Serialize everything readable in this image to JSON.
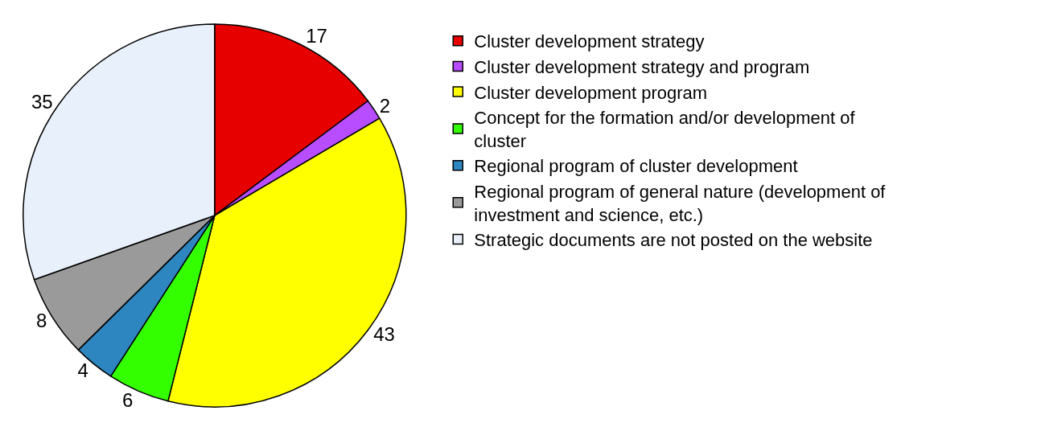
{
  "chart_data": {
    "type": "pie",
    "categories": [
      "Cluster development strategy",
      "Cluster development strategy and program",
      "Cluster development program",
      "Concept for the formation and/or development of cluster",
      "Regional program of cluster development",
      "Regional program of general nature (development of investment and science, etc.)",
      "Strategic documents are not posted on the website"
    ],
    "values": [
      17,
      2,
      43,
      6,
      4,
      8,
      35
    ],
    "colors": [
      "#e60000",
      "#b84dff",
      "#ffff00",
      "#33ff00",
      "#2e86c1",
      "#9a9a9a",
      "#e8f0fc"
    ],
    "data_labels": true,
    "legend": "right"
  }
}
